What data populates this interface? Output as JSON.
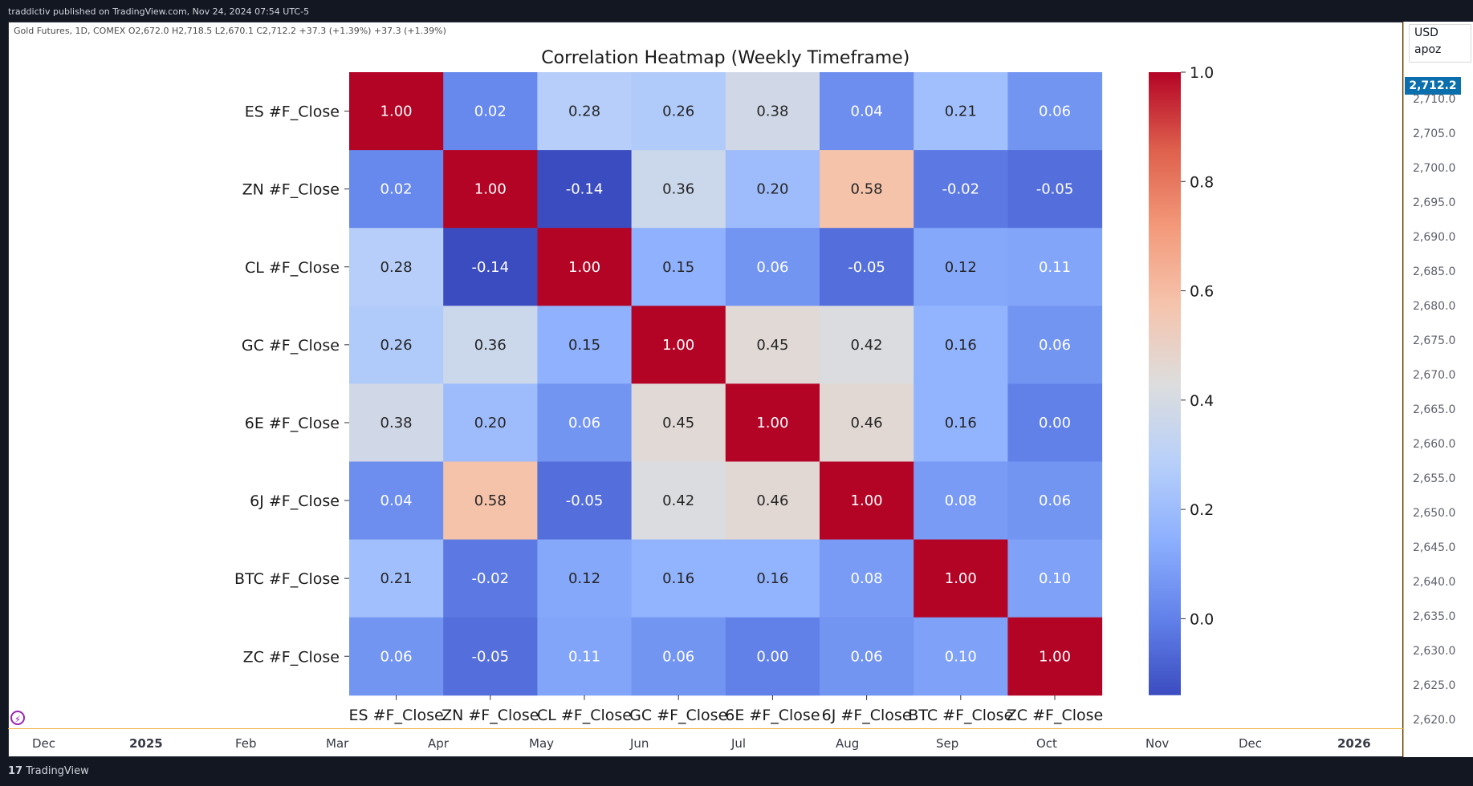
{
  "header": {
    "publisher_line": "traddictiv published on TradingView.com, Nov 24, 2024 07:54 UTC-5"
  },
  "symbol": {
    "info_line": "Gold Futures, 1D, COMEX  O2,672.0  H2,718.5  L2,670.1  C2,712.2  +37.3 (+1.39%)  +37.3 (+1.39%)"
  },
  "price_scale": {
    "currency": "USD",
    "label": "apoz",
    "last_price": "2,712.2",
    "last_price_color": "#0b6fad",
    "ticks": [
      "2,710.0",
      "2,705.0",
      "2,700.0",
      "2,695.0",
      "2,690.0",
      "2,685.0",
      "2,680.0",
      "2,675.0",
      "2,670.0",
      "2,665.0",
      "2,660.0",
      "2,655.0",
      "2,650.0",
      "2,645.0",
      "2,640.0",
      "2,635.0",
      "2,630.0",
      "2,625.0",
      "2,620.0"
    ]
  },
  "time_axis": {
    "labels": [
      "Dec",
      "2025",
      "Feb",
      "Mar",
      "Apr",
      "May",
      "Jun",
      "Jul",
      "Aug",
      "Sep",
      "Oct",
      "Nov",
      "Dec",
      "2026"
    ],
    "bold": [
      "2025",
      "2026"
    ]
  },
  "footer": {
    "brand": "TradingView",
    "logo_icon": "tradingview-logo-icon"
  },
  "chart_data": {
    "type": "heatmap",
    "title": "Correlation Heatmap (Weekly Timeframe)",
    "row_labels": [
      "ES #F_Close",
      "ZN #F_Close",
      "CL #F_Close",
      "GC #F_Close",
      "6E #F_Close",
      "6J #F_Close",
      "BTC #F_Close",
      "ZC #F_Close"
    ],
    "col_labels": [
      "ES #F_Close",
      "ZN #F_Close",
      "CL #F_Close",
      "GC #F_Close",
      "6E #F_Close",
      "6J #F_Close",
      "BTC #F_Close",
      "ZC #F_Close"
    ],
    "values": [
      [
        1.0,
        0.02,
        0.28,
        0.26,
        0.38,
        0.04,
        0.21,
        0.06
      ],
      [
        0.02,
        1.0,
        -0.14,
        0.36,
        0.2,
        0.58,
        -0.02,
        -0.05
      ],
      [
        0.28,
        -0.14,
        1.0,
        0.15,
        0.06,
        -0.05,
        0.12,
        0.11
      ],
      [
        0.26,
        0.36,
        0.15,
        1.0,
        0.45,
        0.42,
        0.16,
        0.06
      ],
      [
        0.38,
        0.2,
        0.06,
        0.45,
        1.0,
        0.46,
        0.16,
        0.0
      ],
      [
        0.04,
        0.58,
        -0.05,
        0.42,
        0.46,
        1.0,
        0.08,
        0.06
      ],
      [
        0.21,
        -0.02,
        0.12,
        0.16,
        0.16,
        0.08,
        1.0,
        0.1
      ],
      [
        0.06,
        -0.05,
        0.11,
        0.06,
        0.0,
        0.06,
        0.1,
        1.0
      ]
    ],
    "colormap": "coolwarm",
    "vmin": -0.14,
    "vmax": 1.0,
    "colorbar_ticks": [
      "1.0",
      "0.8",
      "0.6",
      "0.4",
      "0.2",
      "0.0"
    ],
    "colorbar_tick_values": [
      1.0,
      0.8,
      0.6,
      0.4,
      0.2,
      0.0
    ]
  }
}
